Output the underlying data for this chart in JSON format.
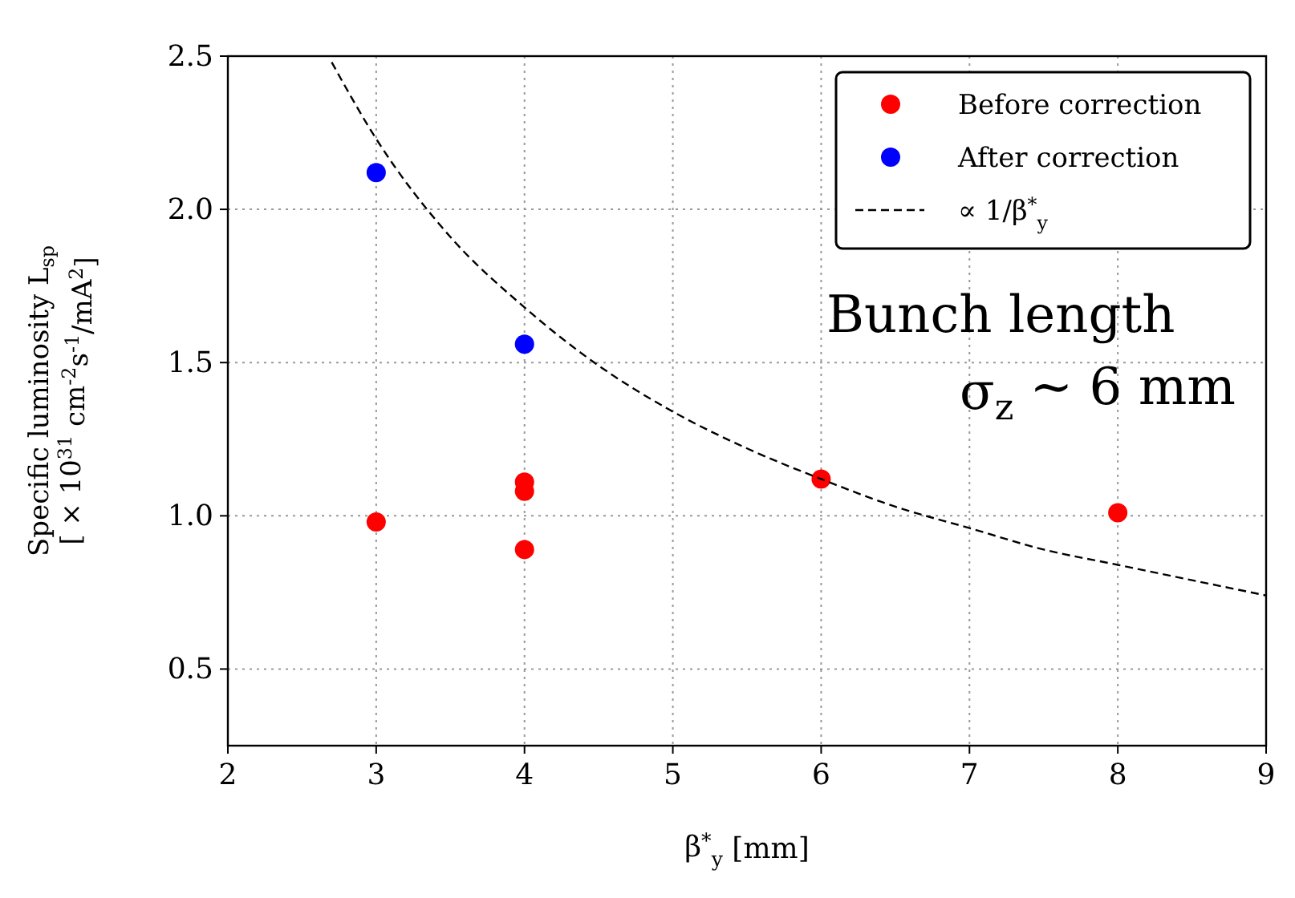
{
  "chart_data": {
    "type": "scatter",
    "xlabel": "β$^{*}$$_{y}$ [mm]",
    "ylabel": "Specific luminosity L$_{sp}$\n[ × 10$^{31}$ cm$^{-2}$s$^{-1}$/mA$^{2}$]",
    "xlim": [
      2,
      9
    ],
    "ylim": [
      0.25,
      2.5
    ],
    "xticks": [
      2,
      3,
      4,
      5,
      6,
      7,
      8,
      9
    ],
    "yticks": [
      {
        "value": 0.5,
        "label": "0.5"
      },
      {
        "value": 1,
        "label": "1.0"
      },
      {
        "value": 1.5,
        "label": "1.5"
      },
      {
        "value": 2,
        "label": "2.0"
      },
      {
        "value": 2.5,
        "label": "2.5"
      }
    ],
    "grid": true,
    "legend": "top right",
    "marker": "circle",
    "annotations": [
      "Bunch length\nσ$_{z}$ ∼ 6 mm"
    ],
    "series": [
      {
        "name": "Before correction",
        "color": "#ff0000",
        "x": [
          3,
          4,
          4,
          4,
          6,
          8
        ],
        "values": [
          0.98,
          1.11,
          1.08,
          0.89,
          1.12,
          1.01
        ]
      },
      {
        "name": "After correction",
        "color": "#0000ff",
        "x": [
          3,
          4
        ],
        "values": [
          2.12,
          1.56
        ]
      },
      {
        "name": "∝ 1/β$^{*}$$_{y}$",
        "type": "line",
        "color": "#000000",
        "line_style": "dashed",
        "marker": "none",
        "x": [
          2.7,
          3,
          3.5,
          4,
          4.5,
          5,
          5.5,
          6,
          6.5,
          7,
          7.5,
          8,
          8.5,
          9
        ],
        "values": [
          2.48,
          2.23,
          1.91,
          1.68,
          1.49,
          1.34,
          1.22,
          1.12,
          1.03,
          0.96,
          0.89,
          0.84,
          0.79,
          0.74
        ]
      }
    ]
  }
}
